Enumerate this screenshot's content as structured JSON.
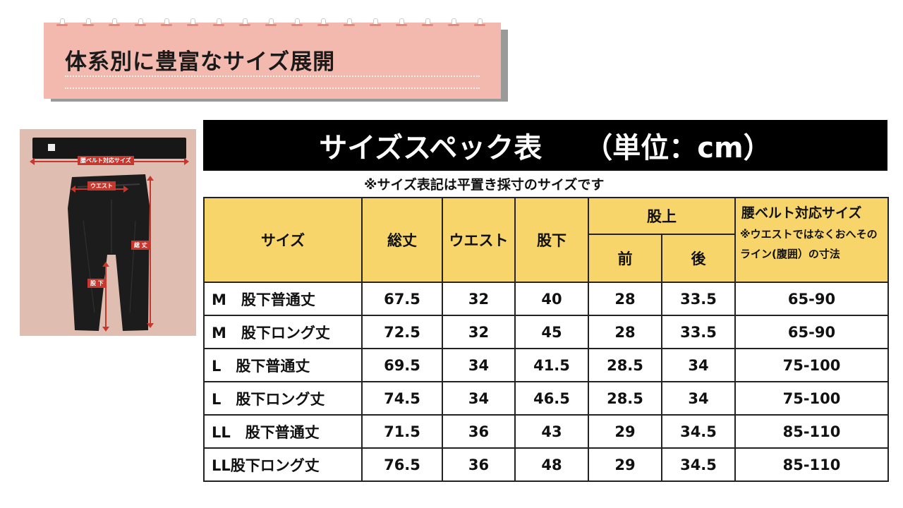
{
  "header": {
    "title": "体系別に豊富なサイズ展開"
  },
  "photo": {
    "labels": {
      "belt": "腰ベルト対応サイズ",
      "waist": "ウエスト",
      "length": "総 丈",
      "inseam": "股 下"
    }
  },
  "spec": {
    "title": "サイズスペック表",
    "unit": "（単位：cm）",
    "note": "※サイズ表記は平置き採寸のサイズです",
    "headers": {
      "size": "サイズ",
      "total": "総丈",
      "waist": "ウエスト",
      "inseam": "股下",
      "rise": "股上",
      "front": "前",
      "back": "後",
      "belt": "腰ベルト対応サイズ",
      "belt_note": "※ウエストではなくおへそのライン(腹囲）の寸法"
    },
    "rows": [
      {
        "size": "M　股下普通丈",
        "total": "67.5",
        "waist": "32",
        "inseam": "40",
        "front": "28",
        "back": "33.5",
        "belt": "65-90"
      },
      {
        "size": "M　股下ロング丈",
        "total": "72.5",
        "waist": "32",
        "inseam": "45",
        "front": "28",
        "back": "33.5",
        "belt": "65-90"
      },
      {
        "size": "L　股下普通丈",
        "total": "69.5",
        "waist": "34",
        "inseam": "41.5",
        "front": "28.5",
        "back": "34",
        "belt": "75-100"
      },
      {
        "size": "L　股下ロング丈",
        "total": "74.5",
        "waist": "34",
        "inseam": "46.5",
        "front": "28.5",
        "back": "34",
        "belt": "75-100"
      },
      {
        "size": "LL　股下普通丈",
        "total": "71.5",
        "waist": "36",
        "inseam": "43",
        "front": "29",
        "back": "34.5",
        "belt": "85-110"
      },
      {
        "size": "LL股下ロング丈",
        "total": "76.5",
        "waist": "36",
        "inseam": "48",
        "front": "29",
        "back": "34.5",
        "belt": "85-110"
      }
    ]
  },
  "colors": {
    "note_bg": "#f4b9ae",
    "header_yellow": "#f7d56a",
    "accent_red": "#c8372d",
    "photo_bg": "#dfbdb0"
  }
}
